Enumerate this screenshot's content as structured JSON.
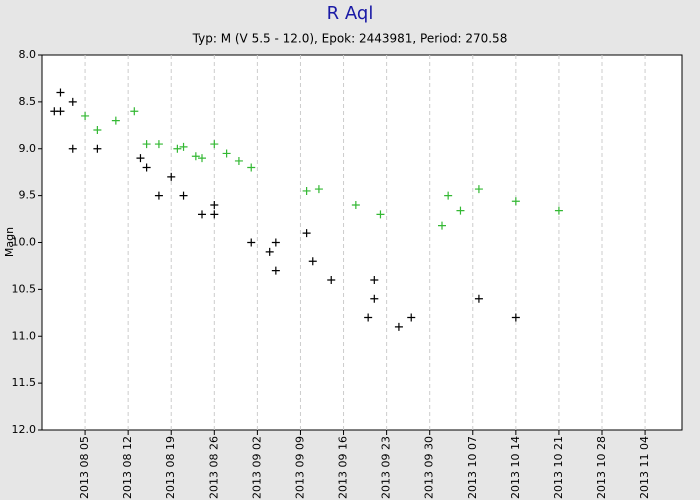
{
  "chart_data": {
    "type": "scatter",
    "title": "R Aql",
    "subtitle": "Typ: M (V 5.5 - 12.0), Epok: 2443981, Period: 270.58",
    "y_label": "Magn",
    "invert_y": true,
    "grid_x": true,
    "xlim": [
      "2013 07 29",
      "2013 11 10"
    ],
    "xticks": [
      "2013 08 05",
      "2013 08 12",
      "2013 08 19",
      "2013 08 26",
      "2013 09 02",
      "2013 09 09",
      "2013 09 16",
      "2013 09 23",
      "2013 09 30",
      "2013 10 07",
      "2013 10 14",
      "2013 10 21",
      "2013 10 28",
      "2013 11 04"
    ],
    "ylim": [
      8,
      12
    ],
    "yticks": [
      {
        "value": 8,
        "label": "8.0"
      },
      8.5,
      {
        "value": 9,
        "label": "9.0"
      },
      9.5,
      {
        "value": 10,
        "label": "10.0"
      },
      10.5,
      {
        "value": 11,
        "label": "11.0"
      },
      11.5,
      {
        "value": 12,
        "label": "12.0"
      }
    ],
    "series": [
      {
        "color": "#000000",
        "x": [
          "2013 07 31",
          "2013 08 01",
          "2013 08 01",
          "2013 08 03",
          "2013 08 03",
          "2013 08 07",
          "2013 08 14",
          "2013 08 15",
          "2013 08 17",
          "2013 08 19",
          "2013 08 21",
          "2013 08 24",
          "2013 08 26",
          "2013 08 26",
          "2013 09 01",
          "2013 09 04",
          "2013 09 05",
          "2013 09 05",
          "2013 09 10",
          "2013 09 11",
          "2013 09 14",
          "2013 09 20",
          "2013 09 21",
          "2013 09 21",
          "2013 09 25",
          "2013 09 27",
          "2013 10 08",
          "2013 10 14"
        ],
        "values": [
          8.6,
          8.6,
          8.4,
          8.5,
          9.0,
          9.0,
          9.1,
          9.2,
          9.5,
          9.3,
          9.5,
          9.7,
          9.6,
          9.7,
          10.0,
          10.1,
          10.0,
          10.3,
          9.9,
          10.2,
          10.4,
          10.8,
          10.4,
          10.6,
          10.9,
          10.8,
          10.6,
          10.8
        ]
      },
      {
        "color": "#33b833",
        "x": [
          "2013 08 05",
          "2013 08 07",
          "2013 08 10",
          "2013 08 13",
          "2013 08 15",
          "2013 08 17",
          "2013 08 20",
          "2013 08 21",
          "2013 08 23",
          "2013 08 24",
          "2013 08 26",
          "2013 08 28",
          "2013 08 30",
          "2013 09 01",
          "2013 09 10",
          "2013 09 12",
          "2013 09 18",
          "2013 09 22",
          "2013 10 02",
          "2013 10 03",
          "2013 10 05",
          "2013 10 08",
          "2013 10 14",
          "2013 10 21"
        ],
        "values": [
          8.65,
          8.8,
          8.7,
          8.6,
          8.95,
          8.95,
          9.0,
          8.98,
          9.08,
          9.1,
          8.95,
          9.05,
          9.13,
          9.2,
          9.45,
          9.43,
          9.6,
          9.7,
          9.82,
          9.5,
          9.66,
          9.43,
          9.56,
          9.66
        ]
      }
    ]
  }
}
